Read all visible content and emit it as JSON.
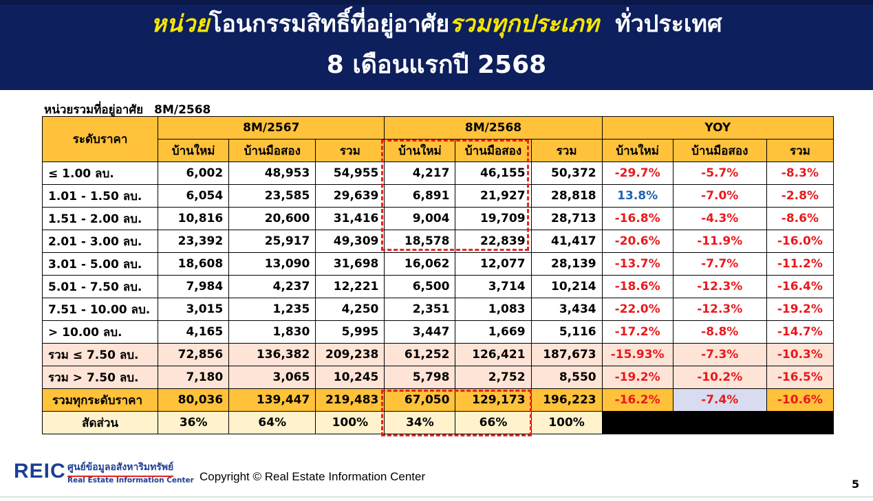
{
  "header": {
    "title_p1": "หน่วย",
    "title_p2": "โอนกรรมสิทธิ์ที่อยู่อาศัย",
    "title_p3": "รวมทุกประเภท",
    "title_p4": "ทั่วประเทศ",
    "subtitle": "8 เดือนแรกปี 2568"
  },
  "caption": {
    "label": "หน่วยรวมที่อยู่อาศัย",
    "period": "8M/2568"
  },
  "table": {
    "price_col": "ระดับราคา",
    "groups": [
      "8M/2567",
      "8M/2568",
      "YOY"
    ],
    "subheads": [
      "บ้านใหม่",
      "บ้านมือสอง",
      "รวม",
      "บ้านใหม่",
      "บ้านมือสอง",
      "รวม",
      "บ้านใหม่",
      "บ้านมือสอง",
      "รวม"
    ],
    "rows": [
      [
        "≤ 1.00 ลบ.",
        "6,002",
        "48,953",
        "54,955",
        "4,217",
        "46,155",
        "50,372",
        "-29.7%",
        "-5.7%",
        "-8.3%"
      ],
      [
        "1.01 - 1.50 ลบ.",
        "6,054",
        "23,585",
        "29,639",
        "6,891",
        "21,927",
        "28,818",
        "13.8%",
        "-7.0%",
        "-2.8%"
      ],
      [
        "1.51 - 2.00 ลบ.",
        "10,816",
        "20,600",
        "31,416",
        "9,004",
        "19,709",
        "28,713",
        "-16.8%",
        "-4.3%",
        "-8.6%"
      ],
      [
        "2.01 - 3.00 ลบ.",
        "23,392",
        "25,917",
        "49,309",
        "18,578",
        "22,839",
        "41,417",
        "-20.6%",
        "-11.9%",
        "-16.0%"
      ],
      [
        "3.01 - 5.00 ลบ.",
        "18,608",
        "13,090",
        "31,698",
        "16,062",
        "12,077",
        "28,139",
        "-13.7%",
        "-7.7%",
        "-11.2%"
      ],
      [
        "5.01 - 7.50 ลบ.",
        "7,984",
        "4,237",
        "12,221",
        "6,500",
        "3,714",
        "10,214",
        "-18.6%",
        "-12.3%",
        "-16.4%"
      ],
      [
        "7.51 - 10.00 ลบ.",
        "3,015",
        "1,235",
        "4,250",
        "2,351",
        "1,083",
        "3,434",
        "-22.0%",
        "-12.3%",
        "-19.2%"
      ],
      [
        "> 10.00 ลบ.",
        "4,165",
        "1,830",
        "5,995",
        "3,447",
        "1,669",
        "5,116",
        "-17.2%",
        "-8.8%",
        "-14.7%"
      ],
      [
        "รวม ≤ 7.50 ลบ.",
        "72,856",
        "136,382",
        "209,238",
        "61,252",
        "126,421",
        "187,673",
        "-15.93%",
        "-7.3%",
        "-10.3%"
      ],
      [
        "รวม > 7.50 ลบ.",
        "7,180",
        "3,065",
        "10,245",
        "5,798",
        "2,752",
        "8,550",
        "-19.2%",
        "-10.2%",
        "-16.5%"
      ],
      [
        "รวมทุกระดับราคา",
        "80,036",
        "139,447",
        "219,483",
        "67,050",
        "129,173",
        "196,223",
        "-16.2%",
        "-7.4%",
        "-10.6%"
      ]
    ],
    "ratio_row": [
      "สัดส่วน",
      "36%",
      "64%",
      "100%",
      "34%",
      "66%",
      "100%"
    ]
  },
  "footer": {
    "logo_text": "REIC",
    "logo_th": "ศูนย์ข้อมูลอสังหาริมทรัพย์",
    "logo_en": "Real Estate Information Center",
    "copyright": "Copyright © Real Estate Information Center",
    "page_number": "5"
  },
  "colors": {
    "banner": "#0d1f5c",
    "highlight": "#f7e600",
    "header_fill": "#ffc23a",
    "negative": "#e8191c",
    "positive": "#1e62b0"
  }
}
